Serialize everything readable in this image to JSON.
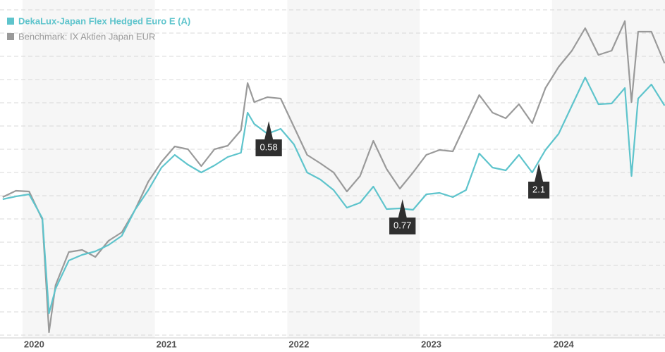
{
  "chart_data": {
    "type": "line",
    "x": [
      2019.85,
      2019.95,
      2020.05,
      2020.15,
      2020.2,
      2020.25,
      2020.35,
      2020.45,
      2020.55,
      2020.65,
      2020.75,
      2020.85,
      2020.95,
      2021.05,
      2021.15,
      2021.25,
      2021.35,
      2021.45,
      2021.55,
      2021.65,
      2021.7,
      2021.75,
      2021.85,
      2021.95,
      2022.05,
      2022.15,
      2022.25,
      2022.35,
      2022.45,
      2022.55,
      2022.65,
      2022.75,
      2022.85,
      2022.95,
      2023.05,
      2023.15,
      2023.25,
      2023.35,
      2023.45,
      2023.55,
      2023.65,
      2023.75,
      2023.85,
      2023.95,
      2024.05,
      2024.15,
      2024.25,
      2024.35,
      2024.45,
      2024.55,
      2024.6,
      2024.65,
      2024.75,
      2024.85
    ],
    "series": [
      {
        "name": "DekaLux-Japan Flex Hedged Euro E (A)",
        "color": "#5ec4cc",
        "values": [
          19.7,
          20.1,
          20.4,
          17.0,
          3.5,
          7.0,
          11.0,
          11.8,
          12.3,
          13.2,
          14.5,
          18.2,
          21.0,
          24.2,
          26.0,
          24.6,
          23.5,
          24.5,
          25.7,
          26.3,
          32.0,
          30.4,
          29.0,
          29.7,
          27.5,
          23.5,
          22.5,
          21.0,
          18.5,
          19.2,
          21.5,
          18.3,
          18.4,
          18.2,
          20.4,
          20.6,
          20.0,
          21.0,
          26.2,
          24.2,
          23.8,
          26.0,
          23.5,
          26.7,
          29.0,
          33.0,
          37.0,
          33.2,
          33.3,
          35.5,
          23.0,
          34.0,
          36.0,
          33.0
        ]
      },
      {
        "name": "Benchmark: IX Aktien Japan EUR",
        "color": "#9a9a9a",
        "values": [
          20.0,
          20.9,
          20.8,
          16.8,
          0.8,
          7.5,
          12.2,
          12.5,
          11.5,
          13.8,
          15.0,
          18.2,
          22.2,
          25.0,
          27.2,
          26.8,
          24.4,
          26.8,
          27.3,
          29.5,
          36.2,
          33.5,
          34.2,
          34.0,
          30.0,
          26.0,
          24.8,
          23.5,
          20.8,
          23.0,
          28.0,
          24.0,
          21.2,
          23.5,
          26.0,
          26.7,
          26.5,
          30.5,
          34.5,
          32.0,
          31.2,
          33.2,
          30.5,
          35.5,
          38.5,
          40.8,
          44.0,
          40.2,
          40.8,
          45.0,
          33.5,
          43.5,
          43.5,
          39.0
        ]
      }
    ],
    "annotations": [
      {
        "text": "0.58",
        "x": 2021.86,
        "y": 30.8
      },
      {
        "text": "0.77",
        "x": 2022.87,
        "y": 19.7
      },
      {
        "text": "2.1",
        "x": 2023.9,
        "y": 24.8
      }
    ],
    "xlim": [
      2019.83,
      2024.853
    ],
    "xticks": [
      2020,
      2021,
      2022,
      2023,
      2024
    ],
    "ylim": [
      0,
      48
    ],
    "yticks": [
      0.4,
      3.7,
      7.0,
      10.3,
      13.6,
      16.9,
      20.2,
      23.5,
      26.8,
      30.1,
      33.4,
      36.7,
      40.0,
      43.3,
      46.6
    ],
    "grid": true
  }
}
